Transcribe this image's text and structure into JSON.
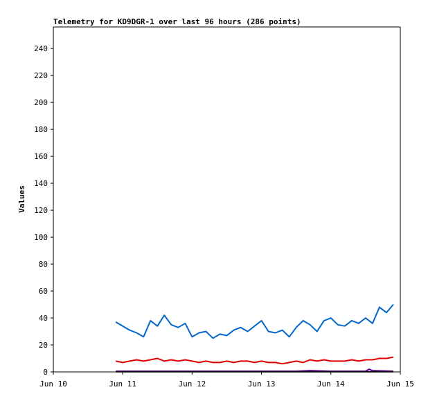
{
  "chart_data": {
    "type": "line",
    "title": "Telemetry for KD9DGR-1 over last 96 hours (286 points)",
    "ylabel": "Values",
    "xlabel": "",
    "x_ticks": [
      "Jun 10",
      "Jun 11",
      "Jun 12",
      "Jun 13",
      "Jun 14",
      "Jun 15"
    ],
    "x_range_days": [
      10,
      15
    ],
    "y_ticks": [
      0,
      20,
      40,
      60,
      80,
      100,
      120,
      140,
      160,
      180,
      200,
      220,
      240
    ],
    "ylim": [
      0,
      256
    ],
    "grid": false,
    "series": [
      {
        "color": "#0066cc",
        "x": [
          10.9,
          11.0,
          11.1,
          11.2,
          11.3,
          11.4,
          11.5,
          11.6,
          11.7,
          11.8,
          11.9,
          12.0,
          12.1,
          12.2,
          12.3,
          12.4,
          12.5,
          12.6,
          12.7,
          12.8,
          12.9,
          13.0,
          13.1,
          13.2,
          13.3,
          13.4,
          13.5,
          13.6,
          13.7,
          13.8,
          13.9,
          14.0,
          14.1,
          14.2,
          14.3,
          14.4,
          14.5,
          14.6,
          14.7,
          14.8,
          14.9
        ],
        "values": [
          37,
          34,
          31,
          29,
          26,
          38,
          34,
          42,
          35,
          33,
          36,
          26,
          29,
          30,
          25,
          28,
          27,
          31,
          33,
          30,
          34,
          38,
          30,
          29,
          31,
          26,
          33,
          38,
          35,
          30,
          38,
          40,
          35,
          34,
          38,
          36,
          40,
          36,
          48,
          44,
          50
        ]
      },
      {
        "color": "#dd0000",
        "x": [
          10.9,
          11.0,
          11.1,
          11.2,
          11.3,
          11.4,
          11.5,
          11.6,
          11.7,
          11.8,
          11.9,
          12.0,
          12.1,
          12.2,
          12.3,
          12.4,
          12.5,
          12.6,
          12.7,
          12.8,
          12.9,
          13.0,
          13.1,
          13.2,
          13.3,
          13.4,
          13.5,
          13.6,
          13.7,
          13.8,
          13.9,
          14.0,
          14.1,
          14.2,
          14.3,
          14.4,
          14.5,
          14.6,
          14.7,
          14.8,
          14.9
        ],
        "values": [
          8,
          7,
          8,
          9,
          8,
          9,
          10,
          8,
          9,
          8,
          9,
          8,
          7,
          8,
          7,
          7,
          8,
          7,
          8,
          8,
          7,
          8,
          7,
          7,
          6,
          7,
          8,
          7,
          9,
          8,
          9,
          8,
          8,
          8,
          9,
          8,
          9,
          9,
          10,
          10,
          11
        ]
      },
      {
        "color": "#660099",
        "x": [
          10.9,
          11.5,
          12.0,
          12.5,
          13.0,
          13.5,
          13.7,
          14.0,
          14.5,
          14.55,
          14.6,
          14.9
        ],
        "values": [
          0.5,
          0.5,
          0.5,
          0.5,
          0.5,
          0.5,
          1,
          0.5,
          0.5,
          2,
          1,
          0.5
        ]
      },
      {
        "color": "#000000",
        "x": [
          10.9,
          11.5,
          12.0,
          12.5,
          13.0,
          13.5,
          14.0,
          14.5,
          14.9
        ],
        "values": [
          0.1,
          0.1,
          0.1,
          0.1,
          0.1,
          0.1,
          0.1,
          0.1,
          0.1
        ]
      }
    ]
  }
}
